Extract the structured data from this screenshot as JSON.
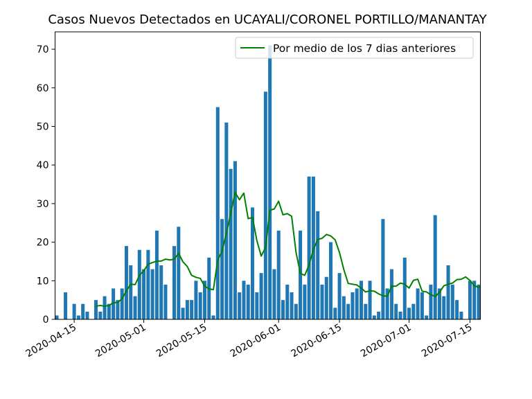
{
  "chart_data": {
    "type": "bar",
    "title": "Casos Nuevos Detectados en UCAYALI/CORONEL PORTILLO/MANANTAY",
    "xlabel": "",
    "ylabel": "",
    "start_date": "2020-04-11",
    "x_ticks": [
      {
        "date": "2020-04-15",
        "label": "2020-04-15"
      },
      {
        "date": "2020-05-01",
        "label": "2020-05-01"
      },
      {
        "date": "2020-05-15",
        "label": "2020-05-15"
      },
      {
        "date": "2020-06-01",
        "label": "2020-06-01"
      },
      {
        "date": "2020-06-15",
        "label": "2020-06-15"
      },
      {
        "date": "2020-07-01",
        "label": "2020-07-01"
      },
      {
        "date": "2020-07-15",
        "label": "2020-07-15"
      }
    ],
    "y_ticks": [
      0,
      10,
      20,
      30,
      40,
      50,
      60,
      70
    ],
    "ylim": [
      0,
      74.5
    ],
    "xlim": [
      "2020-04-11",
      "2020-07-17"
    ],
    "legend": {
      "position": "top-right",
      "entries": [
        "Por medio de los 7 dias anteriores"
      ]
    },
    "series": [
      {
        "type": "bar",
        "color": "#1f77b4",
        "values": [
          1,
          0,
          7,
          0,
          4,
          1,
          4,
          2,
          0,
          5,
          2,
          6,
          4,
          8,
          5,
          8,
          19,
          14,
          6,
          18,
          13,
          18,
          13,
          23,
          14,
          9,
          0,
          19,
          24,
          3,
          5,
          5,
          10,
          7,
          10,
          16,
          1,
          55,
          26,
          51,
          39,
          41,
          7,
          10,
          9,
          29,
          7,
          12,
          59,
          71,
          13,
          23,
          5,
          9,
          7,
          4,
          23,
          9,
          37,
          37,
          28,
          9,
          11,
          20,
          3,
          12,
          6,
          4,
          7,
          8,
          10,
          4,
          10,
          1,
          2,
          26,
          8,
          13,
          4,
          2,
          16,
          3,
          4,
          8,
          7,
          1,
          9,
          27,
          8,
          6,
          14,
          9,
          5,
          2,
          0,
          10,
          10,
          9
        ]
      },
      {
        "type": "line",
        "name": "Por medio de los 7 dias anteriores",
        "color": "#008000",
        "start_index": 9,
        "values": [
          3.4,
          3.6,
          3.4,
          3.6,
          4.3,
          4.4,
          5.3,
          7.4,
          9.1,
          9.0,
          11.4,
          12.6,
          14.3,
          14.7,
          15.1,
          15.1,
          15.6,
          15.4,
          15.6,
          17.1,
          14.9,
          13.7,
          11.4,
          10.9,
          10.6,
          8.6,
          7.9,
          7.7,
          15.3,
          17.7,
          22.4,
          27.5,
          32.9,
          31.0,
          32.7,
          26.1,
          26.4,
          20.4,
          16.4,
          18.6,
          28.3,
          28.6,
          30.6,
          27.1,
          27.4,
          26.7,
          17.4,
          11.9,
          11.4,
          14.1,
          18.1,
          20.7,
          21.0,
          22.0,
          21.6,
          20.6,
          17.3,
          12.9,
          9.3,
          9.1,
          8.9,
          8.1,
          7.1,
          7.4,
          7.3,
          6.6,
          6.1,
          6.0,
          8.6,
          8.6,
          9.4,
          9.1,
          8.1,
          10.1,
          10.4,
          7.3,
          7.1,
          6.4,
          5.9,
          7.0,
          8.7,
          9.1,
          9.4,
          10.3,
          10.4,
          11.0,
          10.1,
          8.7,
          8.3,
          8.8
        ]
      }
    ]
  }
}
